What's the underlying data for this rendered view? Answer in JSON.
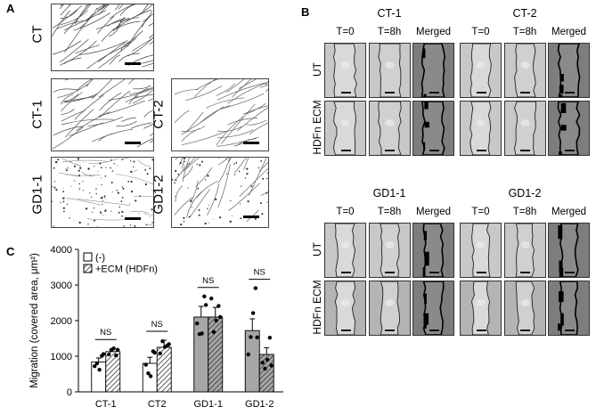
{
  "panel_a": {
    "letter": "A",
    "images": [
      {
        "label": "CT"
      },
      {
        "label": "CT-1"
      },
      {
        "label": "CT-2"
      },
      {
        "label": "GD1-1"
      },
      {
        "label": "GD1-2"
      }
    ]
  },
  "panel_b": {
    "letter": "B",
    "columns": [
      "T=0",
      "T=8h",
      "Merged"
    ],
    "row_labels": [
      "UT",
      "HDFn ECM"
    ],
    "groups": [
      {
        "title": "CT-1"
      },
      {
        "title": "CT-2"
      },
      {
        "title": "GD1-1"
      },
      {
        "title": "GD1-2"
      }
    ]
  },
  "panel_c": {
    "letter": "C"
  },
  "chart_data": {
    "type": "bar",
    "categories": [
      "CT-1",
      "CT2",
      "GD1-1",
      "GD1-2"
    ],
    "ylabel": "Migration (covered area, μm²)",
    "xlabel": "",
    "ylim": [
      0,
      4000
    ],
    "yticks": [
      "0",
      "1000",
      "2000",
      "3000",
      "4000"
    ],
    "legend_position": "top-left",
    "series": [
      {
        "name": "(-)",
        "values": [
          840,
          800,
          2100,
          1720
        ],
        "errors": [
          110,
          170,
          300,
          330
        ],
        "fill": "#ffffff",
        "points": [
          [
            720,
            800,
            620,
            1010,
            1060
          ],
          [
            760,
            520,
            440,
            1140,
            1100
          ],
          [
            1920,
            1620,
            1640,
            2680,
            2440
          ],
          [
            1050,
            1540,
            2210,
            2910,
            1530
          ]
        ]
      },
      {
        "name": "+ECM (HDFn)",
        "values": [
          1130,
          1250,
          2100,
          1050
        ],
        "errors": [
          80,
          200,
          270,
          190
        ],
        "fill": "hatched",
        "points": [
          [
            1050,
            1180,
            1220,
            1020,
            1180
          ],
          [
            1080,
            1420,
            1260,
            1300,
            1340
          ],
          [
            2620,
            1680,
            2000,
            2410,
            2100
          ],
          [
            820,
            650,
            900,
            1520,
            740
          ]
        ]
      }
    ],
    "annotations": [
      "NS",
      "NS",
      "NS",
      "NS"
    ],
    "colors": {
      "gd_bar": "#a6a6a6",
      "ct_bar": "#ffffff",
      "dots": "#000000"
    }
  }
}
